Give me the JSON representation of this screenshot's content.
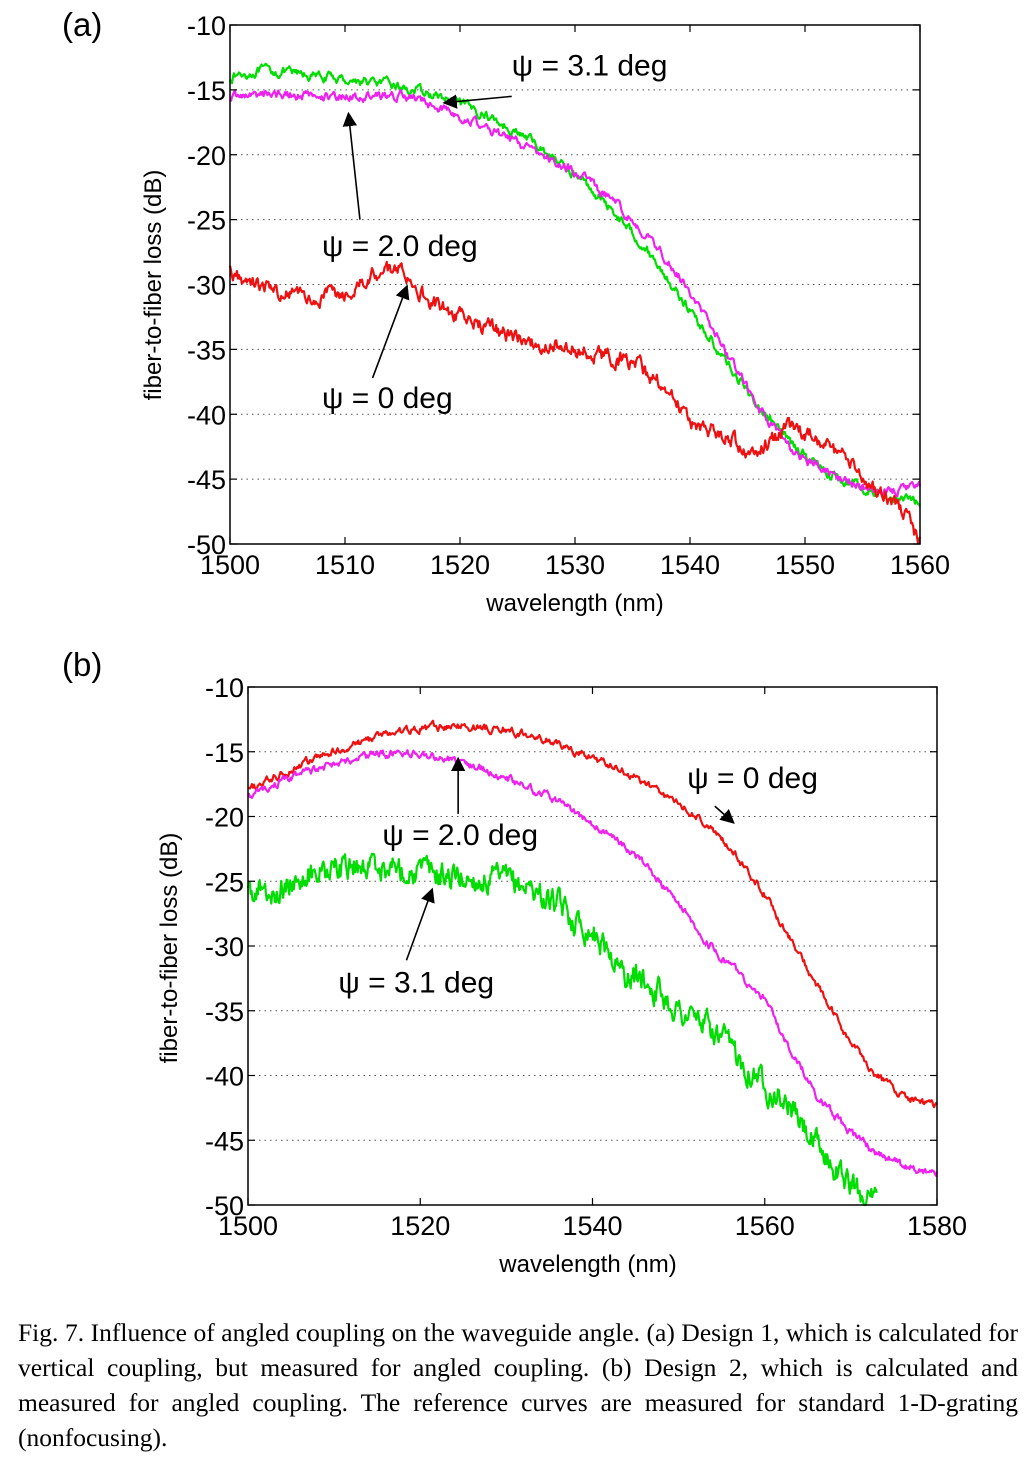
{
  "chart_data": [
    {
      "type": "line",
      "panel_label": "(a)",
      "xlabel": "wavelength (nm)",
      "ylabel": "fiber-to-fiber loss (dB)",
      "xlim": [
        1500,
        1560
      ],
      "ylim": [
        -50,
        -10
      ],
      "xticks": [
        1500,
        1510,
        1520,
        1530,
        1540,
        1550,
        1560
      ],
      "yticks": [
        -10,
        -15,
        -20,
        -25,
        -30,
        -35,
        -40,
        -45,
        -50
      ],
      "grid": "horizontal dotted",
      "series": [
        {
          "label": "ψ = 3.1 deg",
          "color": "#00dd00",
          "noise": 0.35,
          "x": [
            1500,
            1503,
            1506,
            1510,
            1514,
            1518,
            1522,
            1526,
            1530,
            1533,
            1536,
            1538,
            1540,
            1542,
            1544,
            1546,
            1548,
            1550,
            1552,
            1555,
            1558,
            1560
          ],
          "y": [
            -14,
            -13.5,
            -13.8,
            -14.2,
            -14.6,
            -15.5,
            -16.8,
            -18.8,
            -21.5,
            -24,
            -27,
            -29.5,
            -32,
            -34.5,
            -37,
            -39.5,
            -41.5,
            -43.2,
            -44.5,
            -45.7,
            -46.5,
            -46.8
          ]
        },
        {
          "label": "ψ = 2.0 deg",
          "color": "#ee22ee",
          "noise": 0.35,
          "x": [
            1500,
            1504,
            1508,
            1512,
            1515,
            1518,
            1522,
            1526,
            1530,
            1533,
            1536,
            1538,
            1540,
            1542,
            1544,
            1546,
            1548,
            1550,
            1552,
            1555,
            1558,
            1560
          ],
          "y": [
            -15.5,
            -15.3,
            -15.5,
            -15.5,
            -15.4,
            -16.3,
            -17.8,
            -19.5,
            -21.3,
            -23.3,
            -26,
            -28,
            -30.5,
            -33.5,
            -36.5,
            -39.5,
            -42,
            -43.5,
            -44.5,
            -45.6,
            -46,
            -45.6
          ]
        },
        {
          "label": "ψ = 0 deg",
          "color": "#ee1111",
          "noise": 0.6,
          "x": [
            1500,
            1504,
            1507,
            1510,
            1513,
            1515,
            1517,
            1520,
            1523,
            1526,
            1530,
            1535,
            1538,
            1540,
            1543,
            1545,
            1547,
            1549,
            1551,
            1553,
            1555,
            1557,
            1559,
            1560
          ],
          "y": [
            -29,
            -30.5,
            -31,
            -30.5,
            -29,
            -28.5,
            -31,
            -32.5,
            -33.5,
            -34.5,
            -35,
            -36,
            -38,
            -40.5,
            -41.5,
            -43,
            -42,
            -41,
            -42,
            -43,
            -45,
            -46,
            -48,
            -50
          ]
        }
      ],
      "annotations": [
        {
          "text": "ψ = 3.1 deg",
          "x": 1524.5,
          "y": -13.9
        },
        {
          "text": "ψ = 2.0 deg",
          "x": 1508,
          "y": -27.8
        },
        {
          "text": "ψ = 0 deg",
          "x": 1508,
          "y": -39.5
        }
      ]
    },
    {
      "type": "line",
      "panel_label": "(b)",
      "xlabel": "wavelength (nm)",
      "ylabel": "fiber-to-fiber loss (dB)",
      "xlim": [
        1500,
        1580
      ],
      "ylim": [
        -50,
        -10
      ],
      "xticks": [
        1500,
        1520,
        1540,
        1560,
        1580
      ],
      "yticks": [
        -10,
        -15,
        -20,
        -25,
        -30,
        -35,
        -40,
        -45,
        -50
      ],
      "grid": "horizontal dotted",
      "series": [
        {
          "label": "ψ = 0 deg",
          "color": "#ee1111",
          "noise": 0.3,
          "x": [
            1500,
            1505,
            1510,
            1515,
            1520,
            1525,
            1530,
            1535,
            1540,
            1545,
            1550,
            1553,
            1556,
            1560,
            1563,
            1566,
            1570,
            1573,
            1576,
            1580
          ],
          "y": [
            -18,
            -16.3,
            -15,
            -13.8,
            -13.2,
            -13,
            -13.3,
            -14.2,
            -15.5,
            -17,
            -19,
            -20.5,
            -22.5,
            -26,
            -29.5,
            -33,
            -37.5,
            -40,
            -41.5,
            -42.5
          ]
        },
        {
          "label": "ψ = 2.0 deg",
          "color": "#ee22ee",
          "noise": 0.3,
          "x": [
            1500,
            1505,
            1510,
            1515,
            1520,
            1525,
            1530,
            1535,
            1540,
            1545,
            1550,
            1553,
            1556,
            1560,
            1563,
            1566,
            1570,
            1573,
            1576,
            1580
          ],
          "y": [
            -18.5,
            -17,
            -16,
            -15.2,
            -15.2,
            -15.8,
            -17,
            -18.5,
            -20.5,
            -23,
            -26.5,
            -29.5,
            -31.5,
            -34,
            -38,
            -41.5,
            -44.5,
            -46,
            -47,
            -47.5
          ]
        },
        {
          "label": "ψ = 3.1 deg",
          "color": "#00dd00",
          "noise": 1.0,
          "x": [
            1500,
            1503,
            1506,
            1510,
            1515,
            1520,
            1525,
            1530,
            1533,
            1536,
            1538,
            1540,
            1542,
            1544,
            1546,
            1550,
            1553,
            1556,
            1560,
            1563,
            1566,
            1570,
            1573
          ],
          "y": [
            -26,
            -25.5,
            -24.5,
            -24,
            -23.8,
            -24.2,
            -24.8,
            -25,
            -25.5,
            -27,
            -28,
            -28.8,
            -30.5,
            -32.5,
            -32.5,
            -35,
            -36,
            -38,
            -40.5,
            -42.5,
            -45.5,
            -48.5,
            -50
          ]
        }
      ],
      "annotations": [
        {
          "text": "ψ = 0 deg",
          "x": 1551,
          "y": -17.8
        },
        {
          "text": "ψ = 2.0 deg",
          "x": 1515.6,
          "y": -22.2
        },
        {
          "text": "ψ = 3.1 deg",
          "x": 1510.5,
          "y": -33.6
        }
      ]
    }
  ],
  "caption": "Fig. 7.  Influence of angled coupling on the waveguide angle. (a) Design 1, which is calculated for vertical coupling, but measured for angled coupling. (b) Design 2, which is calculated and measured for angled coupling. The reference curves are measured for standard 1-D-grating (nonfocusing)."
}
